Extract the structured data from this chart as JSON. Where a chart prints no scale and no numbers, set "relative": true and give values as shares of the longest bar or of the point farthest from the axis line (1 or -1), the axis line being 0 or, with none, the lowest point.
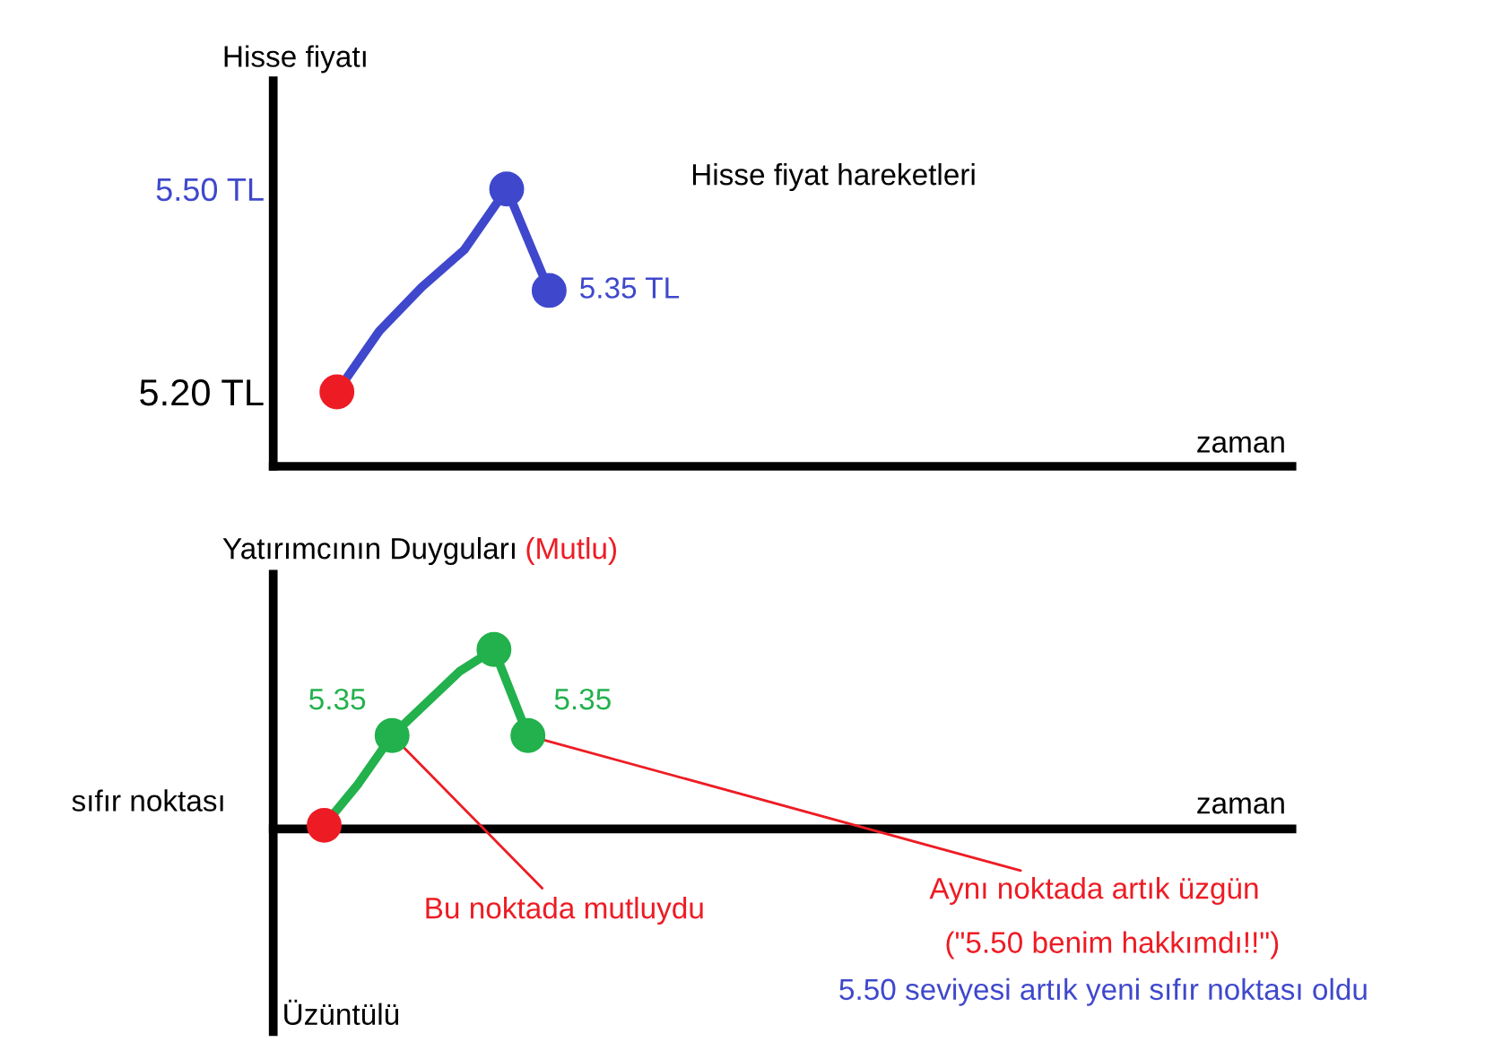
{
  "chart_data": [
    {
      "type": "line",
      "title": "Hisse fiyat hareketleri",
      "ylabel": "Hisse fiyatı",
      "xlabel": "zaman",
      "tick_labels": "y",
      "categories": [
        null,
        null,
        null,
        null,
        null,
        null,
        null,
        null,
        null,
        null,
        null,
        null,
        null,
        null,
        null,
        null,
        null,
        null,
        null,
        null,
        null,
        null,
        null,
        null
      ],
      "ylim": [
        5.09,
        5.66
      ],
      "yticks": [
        {
          "value": 5.2,
          "label": "5.20 TL"
        },
        {
          "value": 5.5,
          "label": "5.50 TL"
        }
      ],
      "series": [
        {
          "color": "#3f48cc",
          "colors": [
            null,
            "#ed1c24",
            null,
            null,
            null,
            "#3f48cc",
            "#3f48cc",
            null,
            null,
            null,
            null,
            null,
            null,
            null,
            null,
            null,
            null,
            null,
            null,
            null,
            null,
            null,
            null,
            null
          ],
          "values": [
            null,
            5.2,
            5.29,
            5.355,
            5.41,
            5.5,
            5.35,
            null,
            null,
            null,
            null,
            null,
            null,
            null,
            null,
            null,
            null,
            null,
            null,
            null,
            null,
            null,
            null,
            null
          ],
          "value_labels": [
            null,
            null,
            null,
            null,
            null,
            null,
            "5.35 TL",
            null,
            null,
            null,
            null,
            null,
            null,
            null,
            null,
            null,
            null,
            null,
            null,
            null,
            null,
            null,
            null,
            null
          ]
        }
      ]
    },
    {
      "type": "line",
      "relative": true,
      "ylabel": "Yatırımcının Duyguları",
      "xlabel": "zaman",
      "tick_labels": false,
      "categories": [
        null,
        null,
        null,
        null,
        null,
        null,
        null,
        null,
        null,
        null,
        null,
        null,
        null,
        null,
        null,
        null,
        null,
        null,
        null,
        null,
        null,
        null,
        null,
        null,
        null,
        null,
        null,
        null,
        null,
        null
      ],
      "series": [
        {
          "color": "#22b14c",
          "colors": [
            null,
            "#ed1c24",
            null,
            "#22b14c",
            null,
            null,
            "#22b14c",
            "#22b14c",
            null,
            null,
            null,
            null,
            null,
            null,
            null,
            null,
            null,
            null,
            null,
            null,
            null,
            null,
            null,
            null,
            null,
            null,
            null,
            null,
            null,
            null
          ],
          "values": [
            null,
            0.02,
            0.25,
            0.52,
            0.7,
            0.88,
            1,
            0.52,
            null,
            null,
            null,
            null,
            null,
            null,
            null,
            null,
            null,
            null,
            null,
            null,
            null,
            null,
            null,
            null,
            null,
            null,
            null,
            null,
            null,
            null
          ]
        }
      ],
      "annotations": [
        "(Mutlu)",
        "sıfır noktası",
        "Üzüntülü",
        "5.35",
        "5.35",
        "Bu noktada mutluydu",
        "Aynı noktada artık üzgün",
        "(\"5.50 benim hakkımdı!!\")",
        "5.50 seviyesi artık yeni sıfır noktası oldu"
      ]
    }
  ]
}
